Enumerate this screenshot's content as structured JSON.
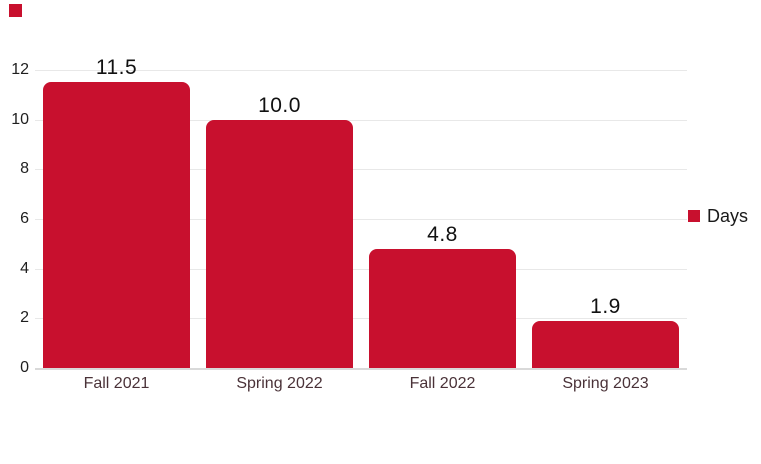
{
  "accent_color": "#C8102E",
  "corner_square": {
    "color": "#C8102E"
  },
  "legend": {
    "label": "Days",
    "swatch_color": "#C8102E",
    "position": "right"
  },
  "chart_data": {
    "type": "bar",
    "categories": [
      "Fall 2021",
      "Spring 2022",
      "Fall 2022",
      "Spring 2023"
    ],
    "series": [
      {
        "name": "Days",
        "values": [
          11.5,
          10.0,
          4.8,
          1.9
        ]
      }
    ],
    "value_labels": [
      "11.5",
      "10.0",
      "4.8",
      "1.9"
    ],
    "title": "",
    "xlabel": "",
    "ylabel": "",
    "ylim": [
      0,
      12
    ],
    "yticks": [
      12,
      10,
      8,
      6,
      4,
      2,
      0
    ],
    "grid": true,
    "legend_position": "right",
    "bar_color": "#C8102E",
    "gridline_color": "#e8e8e8",
    "axis_line_color": "#d9d9d9"
  }
}
